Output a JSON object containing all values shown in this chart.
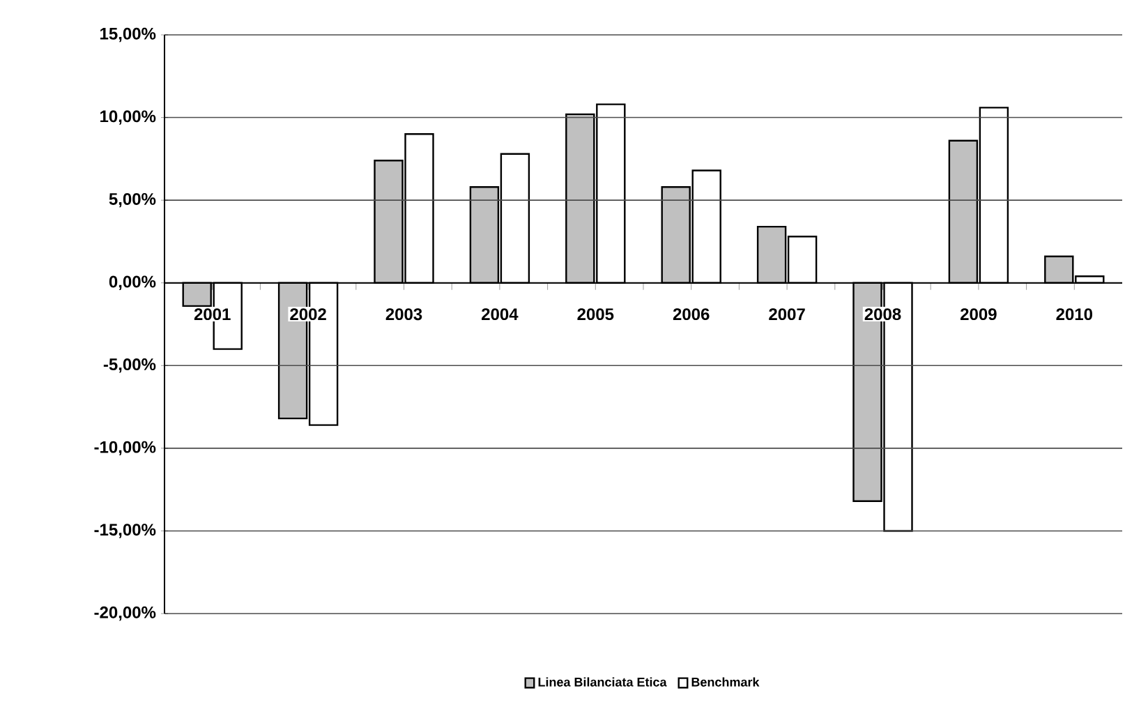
{
  "chart_data": {
    "type": "bar",
    "categories": [
      "2001",
      "2002",
      "2003",
      "2004",
      "2005",
      "2006",
      "2007",
      "2008",
      "2009",
      "2010"
    ],
    "series": [
      {
        "name": "Linea Bilanciata Etica",
        "color": "#c0c0c0",
        "values": [
          -1.4,
          -8.2,
          7.4,
          5.8,
          10.2,
          5.8,
          3.4,
          -13.2,
          8.6,
          1.6
        ]
      },
      {
        "name": "Benchmark",
        "color": "#ffffff",
        "values": [
          -4.0,
          -8.6,
          9.0,
          7.8,
          10.8,
          6.8,
          2.8,
          -15.0,
          10.6,
          0.4
        ]
      }
    ],
    "ylim": [
      -20,
      15
    ],
    "yticks": [
      {
        "value": -20,
        "label": "-20,00%"
      },
      {
        "value": -15,
        "label": "-15,00%"
      },
      {
        "value": -10,
        "label": "-10,00%"
      },
      {
        "value": -5,
        "label": "-5,00%"
      },
      {
        "value": 0,
        "label": "0,00%"
      },
      {
        "value": 5,
        "label": "5,00%"
      },
      {
        "value": 10,
        "label": "10,00%"
      },
      {
        "value": 15,
        "label": "15,00%"
      }
    ],
    "grid": "y",
    "legend": "bottom"
  }
}
